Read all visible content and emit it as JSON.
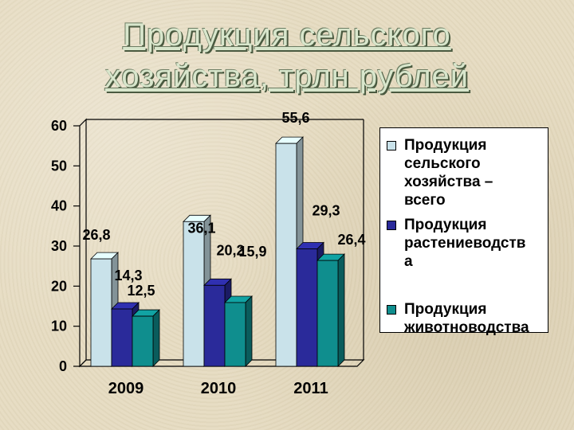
{
  "title": "Продукция сельского хозяйства, трлн рублей",
  "colors": {
    "series_total": "#c9e2ea",
    "series_crop": "#2a2a9a",
    "series_livestock": "#0f8e8e"
  },
  "chart_data": {
    "type": "bar",
    "title": "Продукция сельского хозяйства, трлн рублей",
    "categories": [
      "2009",
      "2010",
      "2011"
    ],
    "series": [
      {
        "name": "Продукция сельского хозяйства – всего",
        "values": [
          26.8,
          36.1,
          55.6
        ],
        "labels": [
          "26,8",
          "36,1",
          "55,6"
        ]
      },
      {
        "name": "Продукция растениеводства",
        "values": [
          14.3,
          20.2,
          29.3
        ],
        "labels": [
          "14,3",
          "20,2",
          "29,3"
        ]
      },
      {
        "name": "Продукция животноводства",
        "values": [
          12.5,
          15.9,
          26.4
        ],
        "labels": [
          "12,5",
          "15,9",
          "26,4"
        ]
      }
    ],
    "ylim": [
      0,
      60
    ],
    "yticks": [
      "0",
      "10",
      "20",
      "30",
      "40",
      "50",
      "60"
    ],
    "xlabel": "",
    "ylabel": "",
    "legend": "right",
    "grid": false
  },
  "legend": [
    {
      "text": "Продукция\nсельского\nхозяйства –\nвсего"
    },
    {
      "text": "Продукция\nрастениеводств\nа"
    },
    {
      "text": "Продукция\nживотноводства"
    }
  ]
}
